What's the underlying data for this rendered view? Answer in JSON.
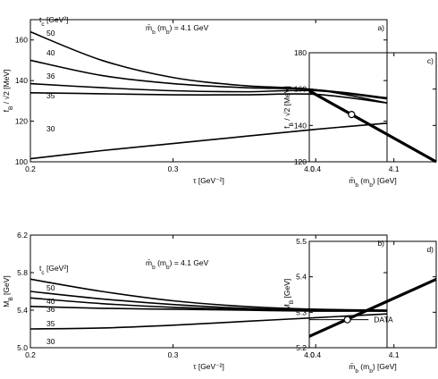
{
  "chart_data": [
    {
      "id": "a",
      "type": "line",
      "panel_label": "a)",
      "xlabel": "τ [GeV⁻²]",
      "ylabel": "f_B / √2 [MeV]",
      "xlim": [
        0.2,
        0.45
      ],
      "ylim": [
        100,
        170
      ],
      "xticks": [
        0.2,
        0.3,
        0.4
      ],
      "yticks": [
        100,
        120,
        140,
        160
      ],
      "legend_title": "t_c [GeV²]",
      "annotation": "m̄_b (m_b) = 4.1 GeV",
      "series": [
        {
          "name": "50",
          "x": [
            0.2,
            0.25,
            0.3,
            0.35,
            0.4,
            0.45
          ],
          "y": [
            164,
            150,
            141.5,
            137.5,
            135.5,
            129
          ]
        },
        {
          "name": "40",
          "x": [
            0.2,
            0.25,
            0.3,
            0.35,
            0.4,
            0.45
          ],
          "y": [
            150,
            142.5,
            138.5,
            136.5,
            135.5,
            131.5
          ]
        },
        {
          "name": "36",
          "x": [
            0.2,
            0.25,
            0.3,
            0.35,
            0.4,
            0.45
          ],
          "y": [
            138.5,
            136.5,
            135,
            134.5,
            135,
            131
          ]
        },
        {
          "name": "35",
          "x": [
            0.2,
            0.25,
            0.3,
            0.35,
            0.4,
            0.45
          ],
          "y": [
            134,
            133.5,
            133,
            133,
            133.2,
            129
          ]
        },
        {
          "name": "30",
          "x": [
            0.2,
            0.25,
            0.3,
            0.35,
            0.4,
            0.45
          ],
          "y": [
            101.5,
            105.5,
            109,
            112.5,
            116,
            119
          ]
        }
      ]
    },
    {
      "id": "b",
      "type": "line",
      "panel_label": "b)",
      "xlabel": "τ [GeV⁻²]",
      "ylabel": "M_B [GeV]",
      "xlim": [
        0.2,
        0.45
      ],
      "ylim": [
        5.0,
        6.2
      ],
      "xticks": [
        0.2,
        0.3,
        0.4
      ],
      "yticks": [
        5.0,
        5.4,
        5.8,
        6.2
      ],
      "yticklabels": [
        "5.0",
        "5.4",
        "5.8",
        "6.2"
      ],
      "legend_title": "t_c [GeV²]",
      "annotation": "m̄_b (m_b) = 4.1 GeV",
      "series": [
        {
          "name": "50",
          "x": [
            0.2,
            0.25,
            0.3,
            0.35,
            0.4,
            0.45
          ],
          "y": [
            5.73,
            5.6,
            5.5,
            5.44,
            5.41,
            5.4
          ]
        },
        {
          "name": "40",
          "x": [
            0.2,
            0.25,
            0.3,
            0.35,
            0.4,
            0.45
          ],
          "y": [
            5.6,
            5.52,
            5.46,
            5.42,
            5.4,
            5.4
          ]
        },
        {
          "name": "36",
          "x": [
            0.2,
            0.25,
            0.3,
            0.35,
            0.4,
            0.45
          ],
          "y": [
            5.53,
            5.47,
            5.43,
            5.41,
            5.4,
            5.39
          ]
        },
        {
          "name": "35",
          "x": [
            0.2,
            0.25,
            0.3,
            0.35,
            0.4,
            0.45
          ],
          "y": [
            5.44,
            5.42,
            5.41,
            5.4,
            5.39,
            5.39
          ]
        },
        {
          "name": "30",
          "x": [
            0.2,
            0.25,
            0.3,
            0.35,
            0.4,
            0.45
          ],
          "y": [
            5.2,
            5.21,
            5.24,
            5.28,
            5.32,
            5.36
          ]
        }
      ]
    },
    {
      "id": "c",
      "type": "line",
      "panel_label": "c)",
      "xlabel": "m̄_b (m_b) [GeV]",
      "ylabel": "f_B / √2 [MeV]",
      "xlim": [
        4.0,
        4.15
      ],
      "ylim": [
        120,
        180
      ],
      "xticks": [
        4.0,
        4.1
      ],
      "yticks": [
        120,
        140,
        160,
        180
      ],
      "series": [
        {
          "x": [
            4.0,
            4.15
          ],
          "y": [
            159,
            120
          ]
        }
      ],
      "marker": {
        "x": 4.05,
        "y": 146
      }
    },
    {
      "id": "d",
      "type": "line",
      "panel_label": "d)",
      "xlabel": "m̄_b (m_b) [GeV]",
      "ylabel": "M_B [GeV]",
      "xlim": [
        4.0,
        4.15
      ],
      "ylim": [
        5.2,
        5.5
      ],
      "xticks": [
        4.0,
        4.1
      ],
      "yticks": [
        5.2,
        5.3,
        5.4,
        5.5
      ],
      "series": [
        {
          "x": [
            4.0,
            4.15
          ],
          "y": [
            5.232,
            5.393
          ]
        }
      ],
      "reference": {
        "label": "DATA",
        "y": 5.279,
        "x": [
          4.0,
          4.07
        ]
      },
      "marker": {
        "x": 4.045,
        "y": 5.279
      }
    }
  ]
}
